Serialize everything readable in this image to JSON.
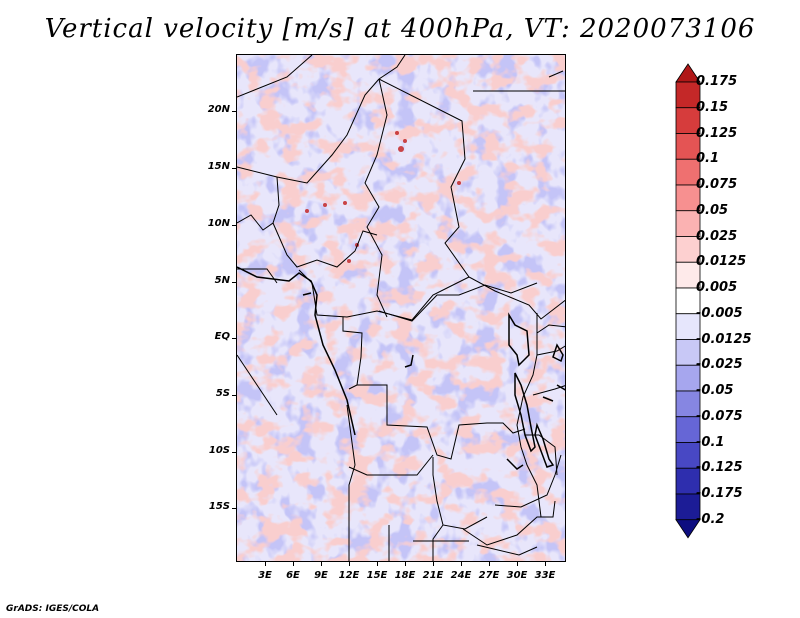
{
  "title": "Vertical velocity [m/s] at 400hPa, VT: 2020073106",
  "credit": "GrADS: IGES/COLA",
  "map": {
    "region": "Central Africa",
    "variable": "Vertical velocity",
    "units": "m/s",
    "level": "400hPa",
    "valid_time": "2020073106",
    "lat_labels": [
      "20N",
      "15N",
      "10N",
      "5N",
      "EQ",
      "5S",
      "10S",
      "15S"
    ],
    "lon_labels": [
      "3E",
      "6E",
      "9E",
      "12E",
      "15E",
      "18E",
      "21E",
      "24E",
      "27E",
      "30E",
      "33E"
    ]
  },
  "colorbar": {
    "levels": [
      "0.175",
      "0.15",
      "0.125",
      "0.1",
      "0.075",
      "0.05",
      "0.025",
      "0.0125",
      "0.005",
      "-0.005",
      "-0.0125",
      "-0.025",
      "-0.05",
      "-0.075",
      "-0.1",
      "-0.125",
      "-0.175",
      "-0.2"
    ],
    "colors": [
      "#b01818",
      "#c42828",
      "#d63c3c",
      "#e45454",
      "#ef7070",
      "#f79090",
      "#fbb2b2",
      "#fdd0d0",
      "#feeaea",
      "#ffffff",
      "#e6e6fc",
      "#c8c8f6",
      "#a6a6ee",
      "#8686e2",
      "#6666d6",
      "#4848c4",
      "#2e2eae",
      "#1c1c96",
      "#0e0e80"
    ]
  }
}
